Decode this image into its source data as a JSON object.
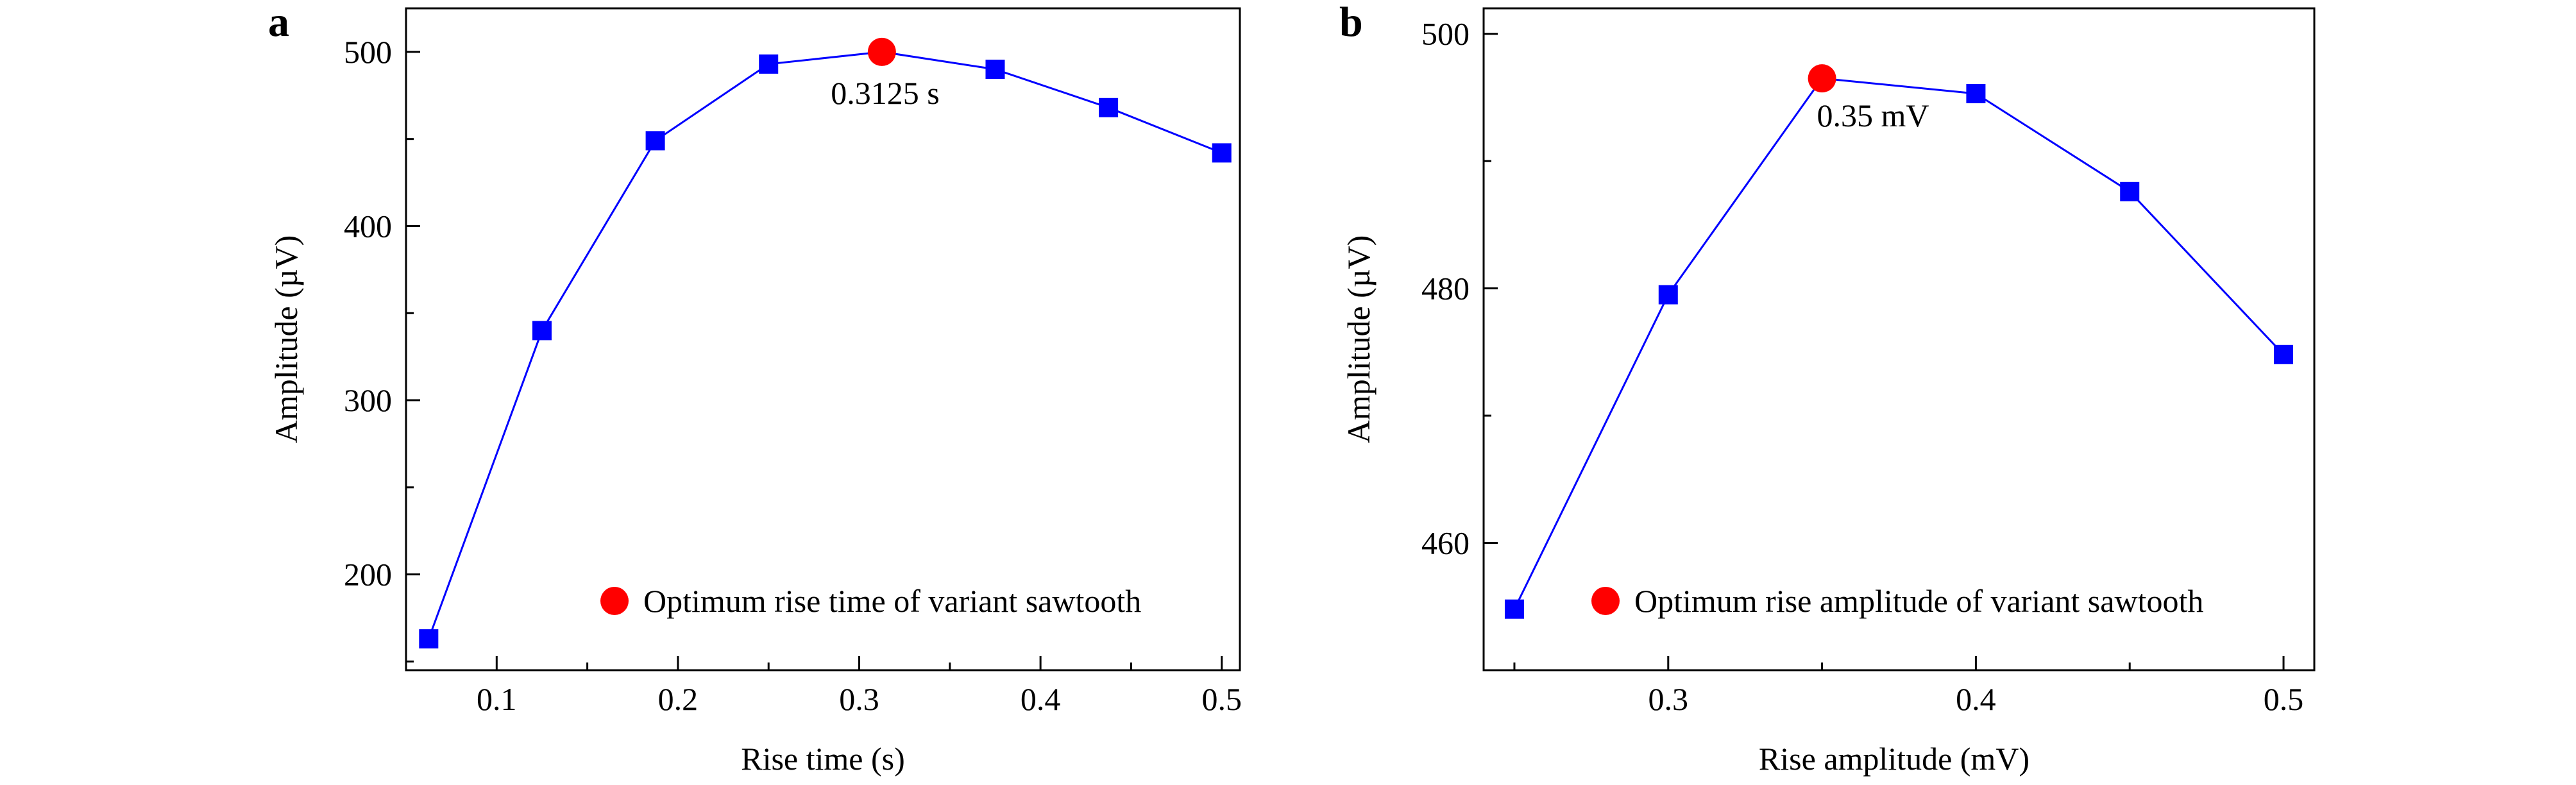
{
  "chart_data": [
    {
      "type": "line",
      "panel_label": "a",
      "xlabel": "Rise time (s)",
      "ylabel": "Amplitude (µV)",
      "xlim": [
        0.05,
        0.51
      ],
      "ylim": [
        145,
        525
      ],
      "xticks": [
        0.1,
        0.2,
        0.3,
        0.4,
        0.5
      ],
      "xtick_labels": [
        "0.1",
        "0.2",
        "0.3",
        "0.4",
        "0.5"
      ],
      "yticks": [
        200,
        300,
        400,
        500
      ],
      "ytick_labels": [
        "200",
        "300",
        "400",
        "500"
      ],
      "grid": false,
      "legend_position": "bottom-right",
      "series": [
        {
          "color": "#0000ff",
          "marker": "square",
          "x": [
            0.0625,
            0.125,
            0.1875,
            0.25,
            0.3125,
            0.375,
            0.4375,
            0.5
          ],
          "y": [
            163,
            340,
            449,
            493,
            500,
            490,
            468,
            442
          ]
        }
      ],
      "highlight": {
        "x": 0.3125,
        "y": 500,
        "color": "#ff0000",
        "label": "0.3125 s",
        "legend_text": "Optimum rise time of variant sawtooth"
      }
    },
    {
      "type": "line",
      "panel_label": "b",
      "xlabel": "Rise amplitude (mV)",
      "ylabel": "Amplitude (µV)",
      "xlim": [
        0.24,
        0.51
      ],
      "ylim": [
        450,
        502
      ],
      "xticks": [
        0.3,
        0.4,
        0.5
      ],
      "xtick_labels": [
        "0.3",
        "0.4",
        "0.5"
      ],
      "yticks": [
        460,
        480,
        500
      ],
      "ytick_labels": [
        "460",
        "480",
        "500"
      ],
      "grid": false,
      "legend_position": "bottom-right",
      "series": [
        {
          "color": "#0000ff",
          "marker": "square",
          "x": [
            0.25,
            0.3,
            0.35,
            0.4,
            0.45,
            0.5
          ],
          "y": [
            454.8,
            479.5,
            496.5,
            495.3,
            487.6,
            474.8
          ]
        }
      ],
      "highlight": {
        "x": 0.35,
        "y": 496.5,
        "color": "#ff0000",
        "label": "0.35 mV",
        "legend_text": "Optimum rise amplitude of variant sawtooth"
      }
    }
  ]
}
